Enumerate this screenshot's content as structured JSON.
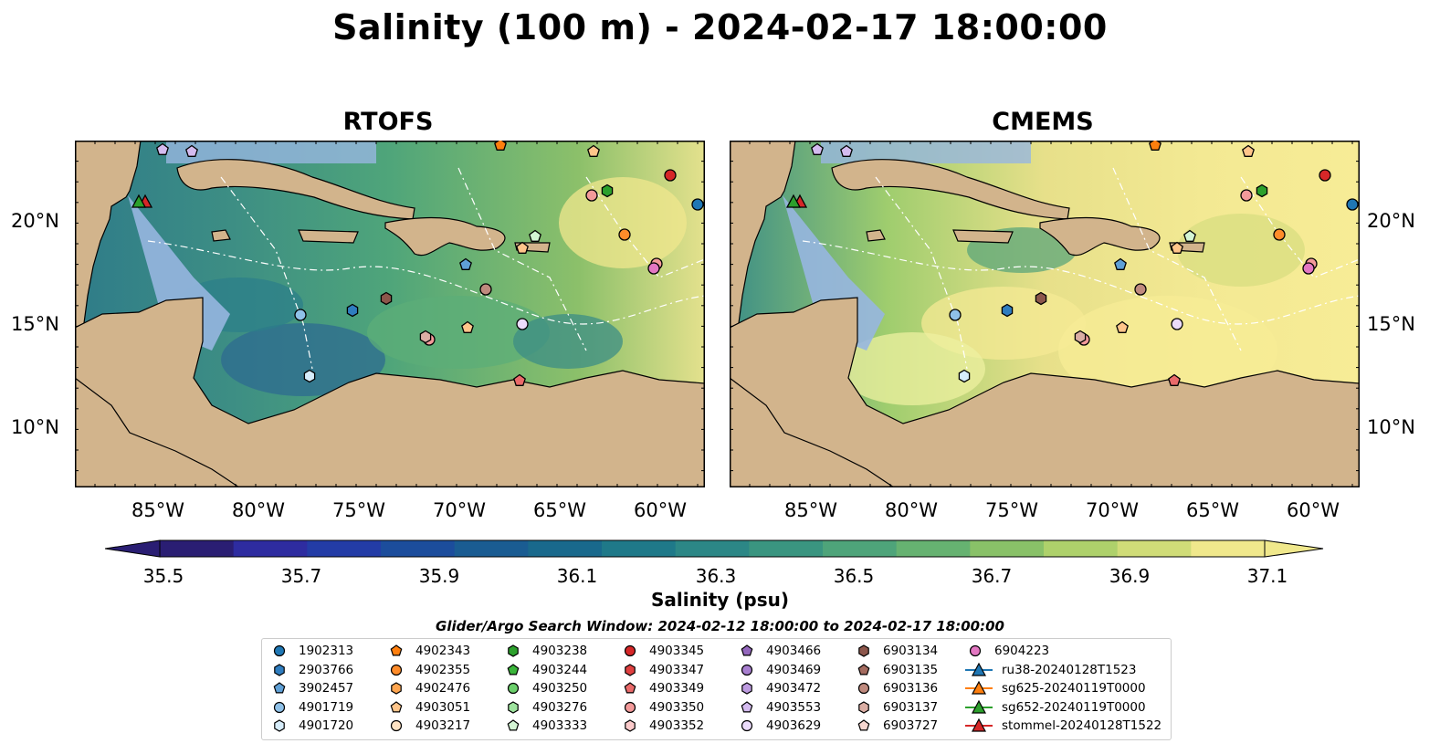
{
  "title": "Salinity (100 m) - 2024-02-17 18:00:00",
  "panels": [
    {
      "title": "RTOFS"
    },
    {
      "title": "CMEMS"
    }
  ],
  "lat_labels": [
    "20°N",
    "15°N",
    "10°N"
  ],
  "lon_labels": [
    "85°W",
    "80°W",
    "75°W",
    "70°W",
    "65°W",
    "60°W"
  ],
  "colorbar": {
    "label": "Salinity (psu)",
    "ticks": [
      "35.5",
      "35.7",
      "35.9",
      "36.1",
      "36.3",
      "36.5",
      "36.7",
      "36.9",
      "37.1"
    ],
    "colors": [
      "#2a1e73",
      "#2e2ca0",
      "#233ca6",
      "#1c4d9c",
      "#1a5c92",
      "#19698c",
      "#1f7989",
      "#2c8786",
      "#3a9580",
      "#4ea47a",
      "#66b271",
      "#89c168",
      "#aed16b",
      "#d0dc78",
      "#f0e88c"
    ]
  },
  "search_window": "Glider/Argo Search Window: 2024-02-12 18:00:00 to 2024-02-17 18:00:00",
  "legend": [
    {
      "label": "1902313",
      "color": "#1f77b4",
      "marker": "circle"
    },
    {
      "label": "2903766",
      "color": "#2f7dbf",
      "marker": "hexagon"
    },
    {
      "label": "3902457",
      "color": "#5fa0d6",
      "marker": "pentagon"
    },
    {
      "label": "4901719",
      "color": "#8fc1e8",
      "marker": "circle"
    },
    {
      "label": "4901720",
      "color": "#d6ecfa",
      "marker": "hexagon"
    },
    {
      "label": "4902343",
      "color": "#ff7f0e",
      "marker": "pentagon"
    },
    {
      "label": "4902355",
      "color": "#ff8c2a",
      "marker": "circle"
    },
    {
      "label": "4902476",
      "color": "#ffa54f",
      "marker": "hexagon"
    },
    {
      "label": "4903051",
      "color": "#ffc58a",
      "marker": "pentagon"
    },
    {
      "label": "4903217",
      "color": "#ffe3c4",
      "marker": "circle"
    },
    {
      "label": "4903238",
      "color": "#2ca02c",
      "marker": "hexagon"
    },
    {
      "label": "4903244",
      "color": "#3ab53a",
      "marker": "pentagon"
    },
    {
      "label": "4903250",
      "color": "#6bcf6b",
      "marker": "circle"
    },
    {
      "label": "4903276",
      "color": "#9ee39e",
      "marker": "hexagon"
    },
    {
      "label": "4903333",
      "color": "#d4f5d4",
      "marker": "pentagon"
    },
    {
      "label": "4903345",
      "color": "#d62728",
      "marker": "circle"
    },
    {
      "label": "4903347",
      "color": "#e04040",
      "marker": "hexagon"
    },
    {
      "label": "4903349",
      "color": "#ea6a6a",
      "marker": "pentagon"
    },
    {
      "label": "4903350",
      "color": "#f39a9a",
      "marker": "circle"
    },
    {
      "label": "4903352",
      "color": "#fbcaca",
      "marker": "hexagon"
    },
    {
      "label": "4903466",
      "color": "#9467bd",
      "marker": "pentagon"
    },
    {
      "label": "4903469",
      "color": "#a87fd0",
      "marker": "circle"
    },
    {
      "label": "4903472",
      "color": "#bd9be0",
      "marker": "hexagon"
    },
    {
      "label": "4903553",
      "color": "#d4bbef",
      "marker": "pentagon"
    },
    {
      "label": "4903629",
      "color": "#ecdcfb",
      "marker": "circle"
    },
    {
      "label": "6903134",
      "color": "#8c564b",
      "marker": "hexagon"
    },
    {
      "label": "6903135",
      "color": "#a46b5f",
      "marker": "pentagon"
    },
    {
      "label": "6903136",
      "color": "#bf8a7e",
      "marker": "circle"
    },
    {
      "label": "6903137",
      "color": "#dbaea4",
      "marker": "hexagon"
    },
    {
      "label": "6903727",
      "color": "#f6d6cf",
      "marker": "pentagon"
    },
    {
      "label": "6904223",
      "color": "#e377c2",
      "marker": "circle"
    },
    {
      "label": "ru38-20240128T1523",
      "color": "#1f77b4",
      "marker": "triangle-line"
    },
    {
      "label": "sg625-20240119T0000",
      "color": "#ff7f0e",
      "marker": "triangle-line"
    },
    {
      "label": "sg652-20240119T0000",
      "color": "#2ca02c",
      "marker": "triangle-line"
    },
    {
      "label": "stommel-20240128T1522",
      "color": "#d62728",
      "marker": "triangle-line"
    }
  ],
  "map_colors": {
    "land": "#d2b48c",
    "shelf": "#97b6e0",
    "pacific": "#271a63"
  }
}
